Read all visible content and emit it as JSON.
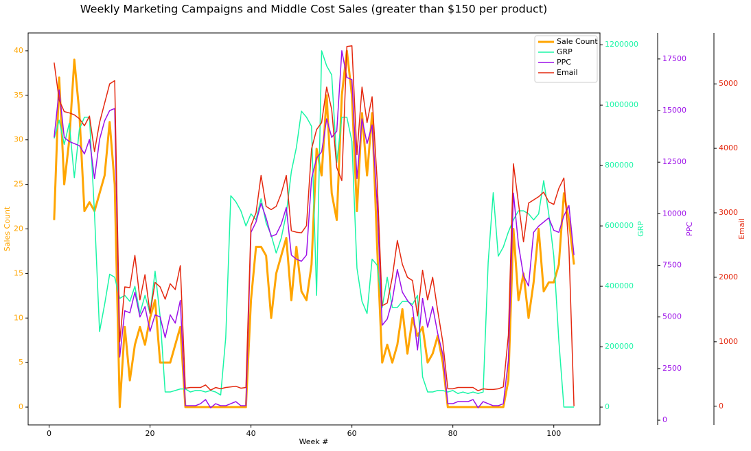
{
  "chart_data": {
    "type": "line",
    "title": "Weekly Marketing Campaigns and Middle Cost Sales (greater than $150 per product)",
    "xlabel": "Week #",
    "ylabel": "Sales Count",
    "y2label": "GRP",
    "y3label": "PPC",
    "y4label": "Email",
    "x": [
      1,
      2,
      3,
      4,
      5,
      6,
      7,
      8,
      9,
      10,
      11,
      12,
      13,
      14,
      15,
      16,
      17,
      18,
      19,
      20,
      21,
      22,
      23,
      24,
      25,
      26,
      27,
      28,
      29,
      30,
      31,
      32,
      33,
      34,
      35,
      36,
      37,
      38,
      39,
      40,
      41,
      42,
      43,
      44,
      45,
      46,
      47,
      48,
      49,
      50,
      51,
      52,
      53,
      54,
      55,
      56,
      57,
      58,
      59,
      60,
      61,
      62,
      63,
      64,
      65,
      66,
      67,
      68,
      69,
      70,
      71,
      72,
      73,
      74,
      75,
      76,
      77,
      78,
      79,
      80,
      81,
      82,
      83,
      84,
      85,
      86,
      87,
      88,
      89,
      90,
      91,
      92,
      93,
      94,
      95,
      96,
      97,
      98,
      99,
      100,
      101,
      102,
      103,
      104
    ],
    "xlim": [
      -4.15,
      109.15
    ],
    "xticks": [
      0,
      20,
      40,
      60,
      80,
      100
    ],
    "ylim": [
      -2,
      42
    ],
    "yticks": [
      0,
      5,
      10,
      15,
      20,
      25,
      30,
      35,
      40
    ],
    "y2lim": [
      -59000,
      1239000
    ],
    "y2ticks": [
      0,
      200000,
      400000,
      600000,
      800000,
      1000000,
      1200000
    ],
    "y3lim": [
      -230,
      18760
    ],
    "y3ticks": [
      0,
      2500,
      5000,
      7500,
      10000,
      12500,
      15000,
      17500
    ],
    "y4lim": [
      -290,
      5790
    ],
    "y4ticks": [
      0,
      1000,
      2000,
      3000,
      4000,
      5000
    ],
    "legend": "upper right",
    "series": [
      {
        "name": "Sale Count",
        "color": "#ffa500",
        "axis": "y",
        "values": [
          21,
          37,
          25,
          30,
          39,
          33,
          22,
          23,
          22,
          24,
          26,
          32,
          25,
          0,
          9,
          3,
          7,
          9,
          7,
          10,
          12,
          5,
          5,
          5,
          7,
          9,
          0,
          0,
          0,
          0,
          0,
          0,
          0,
          0,
          0,
          0,
          0,
          0,
          0,
          12,
          18,
          18,
          17,
          10,
          15,
          17,
          19,
          12,
          18,
          13,
          12,
          16,
          29,
          26,
          35,
          24,
          21,
          35,
          40,
          35,
          22,
          33,
          26,
          33,
          18,
          5,
          7,
          5,
          7,
          11,
          6,
          10,
          8,
          9,
          5,
          6,
          8,
          5,
          0,
          0,
          0,
          0,
          0,
          0,
          0,
          0,
          0,
          0,
          0,
          0,
          3,
          20,
          12,
          15,
          10,
          14,
          20,
          13,
          14,
          14,
          16,
          24,
          21,
          16
        ]
      },
      {
        "name": "GRP",
        "color": "#1af5a6",
        "axis": "y2",
        "values": [
          890000,
          950000,
          870000,
          940000,
          760000,
          920000,
          960000,
          960000,
          640000,
          250000,
          340000,
          440000,
          430000,
          360000,
          370000,
          350000,
          400000,
          310000,
          370000,
          310000,
          450000,
          300000,
          50000,
          50000,
          55000,
          60000,
          60000,
          50000,
          55000,
          55000,
          50000,
          55000,
          50000,
          40000,
          230000,
          700000,
          680000,
          650000,
          600000,
          640000,
          620000,
          690000,
          610000,
          570000,
          510000,
          560000,
          640000,
          780000,
          860000,
          980000,
          960000,
          930000,
          370000,
          1180000,
          1130000,
          1100000,
          810000,
          960000,
          960000,
          880000,
          460000,
          350000,
          310000,
          490000,
          470000,
          330000,
          430000,
          330000,
          330000,
          350000,
          350000,
          340000,
          370000,
          100000,
          50000,
          50000,
          55000,
          55000,
          50000,
          55000,
          45000,
          50000,
          45000,
          50000,
          45000,
          50000,
          480000,
          710000,
          500000,
          530000,
          580000,
          620000,
          650000,
          650000,
          640000,
          620000,
          640000,
          750000,
          640000,
          500000,
          220000,
          0,
          0,
          0
        ]
      },
      {
        "name": "PPC",
        "color": "#9c10e8",
        "axis": "y3",
        "values": [
          13700,
          16000,
          13700,
          13500,
          13400,
          13300,
          12900,
          13600,
          11700,
          13600,
          14500,
          15000,
          15100,
          3060,
          5300,
          5200,
          6200,
          5000,
          5500,
          4300,
          5100,
          5000,
          4000,
          5100,
          4700,
          5800,
          700,
          700,
          700,
          800,
          1000,
          600,
          800,
          700,
          700,
          800,
          900,
          700,
          700,
          9100,
          9600,
          10500,
          9800,
          8900,
          9000,
          9500,
          10300,
          8000,
          7800,
          7700,
          8000,
          11700,
          12700,
          13000,
          14600,
          13700,
          14000,
          17900,
          16600,
          16500,
          11700,
          14600,
          13400,
          14300,
          10500,
          4600,
          4900,
          5800,
          7300,
          6200,
          5800,
          5500,
          3400,
          5900,
          4500,
          5500,
          4200,
          3200,
          800,
          800,
          900,
          900,
          900,
          1000,
          600,
          900,
          800,
          700,
          700,
          800,
          2900,
          11000,
          8500,
          7000,
          6500,
          9100,
          9400,
          9600,
          9800,
          9200,
          9100,
          9900,
          10400,
          8000
        ]
      },
      {
        "name": "Email",
        "color": "#e4280f",
        "axis": "y4",
        "values": [
          5330,
          4750,
          4570,
          4550,
          4520,
          4460,
          4350,
          4500,
          3950,
          4400,
          4700,
          5000,
          5050,
          1000,
          1850,
          1840,
          2340,
          1650,
          2040,
          1440,
          1920,
          1850,
          1660,
          1900,
          1810,
          2180,
          280,
          290,
          290,
          290,
          330,
          250,
          290,
          270,
          290,
          300,
          310,
          280,
          290,
          2800,
          3000,
          3580,
          3100,
          3050,
          3100,
          3300,
          3580,
          2720,
          2700,
          2690,
          2800,
          3990,
          4290,
          4400,
          4950,
          4600,
          3700,
          3500,
          5580,
          5590,
          3900,
          4950,
          4400,
          4800,
          3500,
          1560,
          1600,
          2000,
          2570,
          2200,
          2000,
          1950,
          1400,
          2110,
          1650,
          2000,
          1480,
          1000,
          270,
          270,
          290,
          290,
          290,
          290,
          240,
          270,
          260,
          260,
          270,
          300,
          1100,
          3760,
          3150,
          2550,
          3150,
          3200,
          3250,
          3320,
          3170,
          3130,
          3380,
          3540,
          2460,
          0
        ]
      }
    ]
  }
}
